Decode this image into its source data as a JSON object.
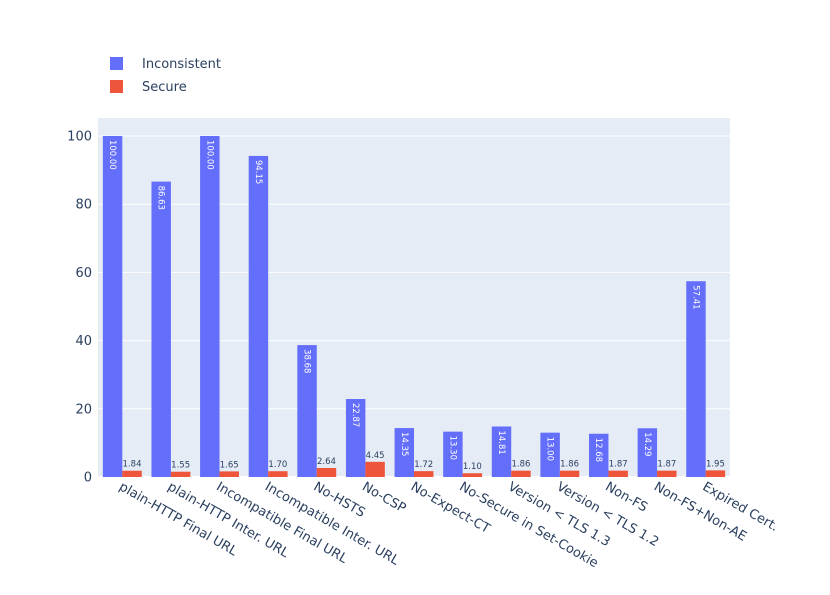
{
  "chart_data": {
    "type": "bar",
    "categories": [
      "plain-HTTP Final URL",
      "plain-HTTP Inter. URL",
      "Incompatible Final URL",
      "Incompatible Inter. URL",
      "No-HSTS",
      "No-CSP",
      "No-Expect-CT",
      "No-Secure in Set-Cookie",
      "Version < TLS 1.3",
      "Version < TLS 1.2",
      "Non-FS",
      "Non-FS+Non-AE",
      "Expired Cert."
    ],
    "series": [
      {
        "name": "Inconsistent",
        "color": "#636efa",
        "values": [
          100.0,
          86.63,
          100.0,
          94.15,
          38.68,
          22.87,
          14.35,
          13.3,
          14.81,
          13.0,
          12.68,
          14.29,
          57.41
        ],
        "labels": [
          "100.00",
          "86.63",
          "100.00",
          "94.15",
          "38.68",
          "22.87",
          "14.35",
          "13.30",
          "14.81",
          "13.00",
          "12.68",
          "14.29",
          "57.41"
        ]
      },
      {
        "name": "Secure",
        "color": "#ef553b",
        "values": [
          1.84,
          1.55,
          1.65,
          1.7,
          2.64,
          4.45,
          1.72,
          1.1,
          1.86,
          1.86,
          1.87,
          1.87,
          1.95
        ],
        "labels": [
          "1.84",
          "1.55",
          "1.65",
          "1.70",
          "2.64",
          "4.45",
          "1.72",
          "1.10",
          "1.86",
          "1.86",
          "1.87",
          "1.87",
          "1.95"
        ]
      }
    ],
    "yticks": [
      0,
      20,
      40,
      60,
      80,
      100
    ],
    "ylim": [
      0,
      100
    ],
    "grid": true,
    "legend": "top-left",
    "background": "#e5ecf6",
    "title": "",
    "xlabel": "",
    "ylabel": ""
  }
}
